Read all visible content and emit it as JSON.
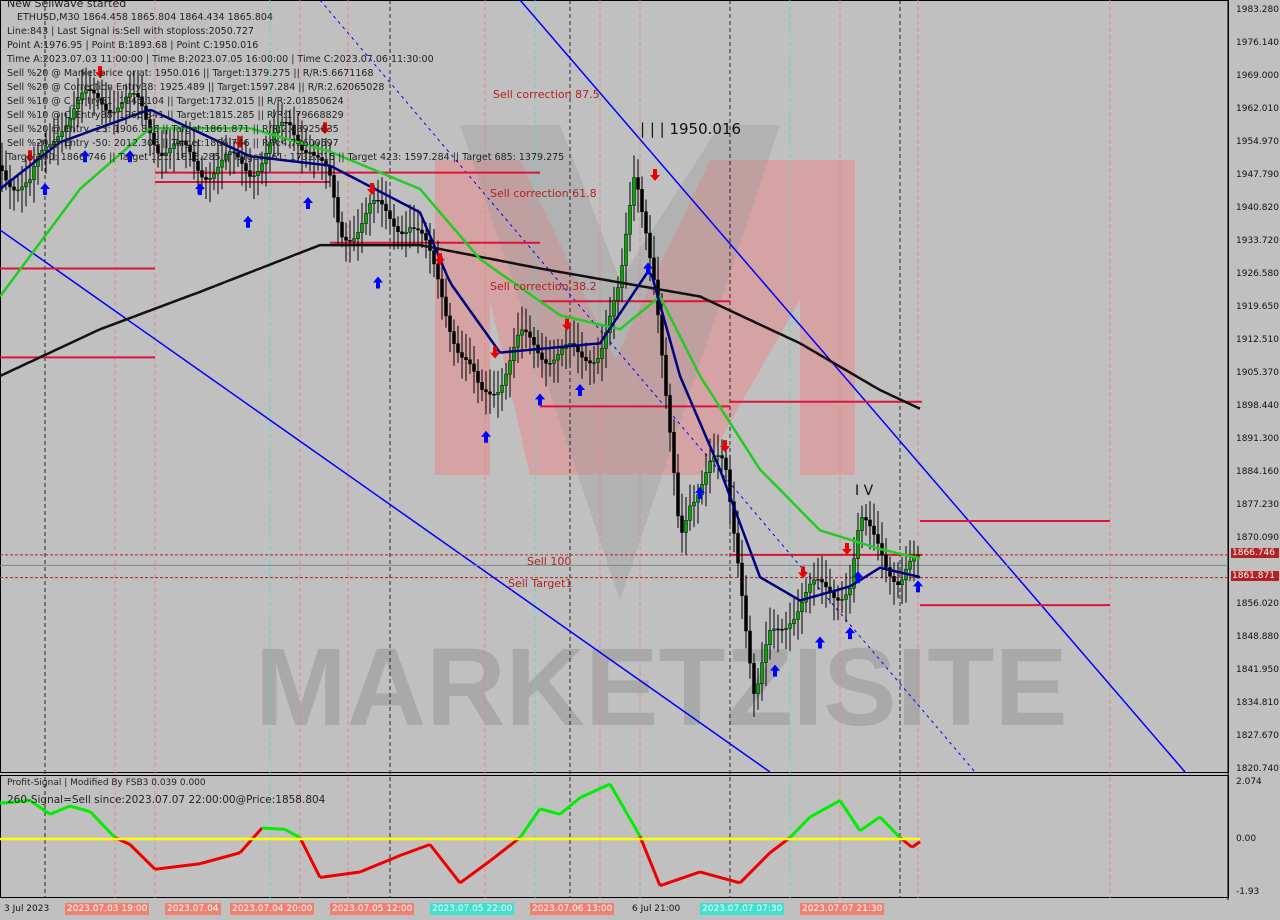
{
  "header": {
    "status": "New Sellwave started",
    "symbol_line": "ETHUSD,M30  1864.458 1865.804 1864.434 1865.804",
    "lines": [
      "Line:843 | Last Signal is:Sell with stoploss:2050.727",
      "Point A:1976.95 | Point B:1893.68 | Point C:1950.016",
      "Time A:2023.07.03 11:00:00 | Time B:2023.07.05 16:00:00 | Time C:2023.07.06 11:30:00",
      "Sell %20 @ Market price or at: 1950.016 || Target:1379.275 || R/R:5.6671168",
      "Sell %20 @ Correction Entry38: 1925.489 || Target:1597.284 || R/R:2.62065028",
      "Sell %10 @ C_Entry61: 1945.104 || Target:1732.015 || R/R:2.01850624",
      "Sell %10 @ C_Entry88: 1966.841 || Target:1815.285 || R/R:1.79668829",
      "Sell %20 @ Entry -23: 1906.836 || Target:1861.871 || R/R:2.48925635",
      "Sell %20 @ Entry -50: 2012.305 || Target:1866.746 || R/R:4.72600597",
      "Target100: 1866.746 || Target 161: 1815.285 || Target 261: 1732.015 || Target 423: 1597.284 || Target 685: 1379.275"
    ]
  },
  "labels": {
    "sell_correction_875": "Sell correction 87.5",
    "sell_correction_618": "Sell correction 61.8",
    "sell_correction_382": "Sell correction 38.2",
    "sell_100": "Sell 100",
    "sell_target1": "Sell Target1",
    "wave_c": "| | | 1950.016",
    "wave_iv": "I V",
    "watermark": "MARKETZISITE"
  },
  "price_axis": [
    "1983.280",
    "1976.140",
    "1969.000",
    "1962.010",
    "1954.970",
    "1947.790",
    "1940.820",
    "1933.720",
    "1926.580",
    "1919.650",
    "1912.510",
    "1905.370",
    "1898.440",
    "1891.300",
    "1884.160",
    "1877.230",
    "1870.090",
    "1856.020",
    "1848.880",
    "1841.950",
    "1834.810",
    "1827.670",
    "1820.740"
  ],
  "price_tags": {
    "target100": "1866.746",
    "target1": "1861.871"
  },
  "indicator": {
    "title": "Profit-Signal | Modified By FSB3 0.039 0.000",
    "signal": "260-Signal=Sell since:2023.07.07 22:00:00@Price:1858.804",
    "axis": [
      "2.074",
      "0.00",
      "-1.93"
    ]
  },
  "time_axis": [
    {
      "text": "3 Jul 2023",
      "kind": "p"
    },
    {
      "text": "2023.07.03 19:00",
      "kind": "s"
    },
    {
      "text": "2023.07.04",
      "kind": "s"
    },
    {
      "text": "2023.07.04 20:00",
      "kind": "s"
    },
    {
      "text": "2023.07.05 12:00",
      "kind": "s"
    },
    {
      "text": "2023.07.05 22:00",
      "kind": "c"
    },
    {
      "text": "2023.07.06 13:00",
      "kind": "s"
    },
    {
      "text": "6 Jul 21:00",
      "kind": "p"
    },
    {
      "text": "2023.07.07 07:30",
      "kind": "c"
    },
    {
      "text": "2023.07.07 21:30",
      "kind": "s"
    }
  ],
  "colors": {
    "bg": "#c0c0c0",
    "up": "#00aa00",
    "down": "#000000",
    "level": "#dc143c",
    "channel": "#0000ff",
    "ma_fast": "#000080",
    "ma_mid": "#22cc22",
    "ma_slow": "#111111"
  },
  "chart_data": {
    "type": "candlestick",
    "symbol": "ETHUSD",
    "timeframe": "M30",
    "ylim": [
      1820.74,
      1983.28
    ],
    "path": [
      [
        0,
        1950
      ],
      [
        30,
        1945
      ],
      [
        60,
        1960
      ],
      [
        100,
        1965
      ],
      [
        140,
        1962
      ],
      [
        160,
        1955
      ],
      [
        200,
        1950
      ],
      [
        250,
        1950
      ],
      [
        290,
        1958
      ],
      [
        310,
        1955
      ],
      [
        330,
        1945
      ],
      [
        340,
        1935
      ],
      [
        370,
        1940
      ],
      [
        410,
        1938
      ],
      [
        440,
        1925
      ],
      [
        460,
        1910
      ],
      [
        480,
        1900
      ],
      [
        500,
        1905
      ],
      [
        520,
        1912
      ],
      [
        560,
        1910
      ],
      [
        580,
        1908
      ],
      [
        600,
        1912
      ],
      [
        620,
        1922
      ],
      [
        635,
        1950
      ],
      [
        645,
        1940
      ],
      [
        655,
        1925
      ],
      [
        665,
        1900
      ],
      [
        680,
        1870
      ],
      [
        690,
        1880
      ],
      [
        710,
        1885
      ],
      [
        725,
        1885
      ],
      [
        740,
        1865
      ],
      [
        755,
        1835
      ],
      [
        770,
        1848
      ],
      [
        790,
        1855
      ],
      [
        810,
        1858
      ],
      [
        830,
        1860
      ],
      [
        850,
        1860
      ],
      [
        860,
        1872
      ],
      [
        880,
        1870
      ],
      [
        900,
        1860
      ],
      [
        920,
        1865
      ]
    ],
    "ma_fast": [
      [
        0,
        1945
      ],
      [
        60,
        1955
      ],
      [
        150,
        1962
      ],
      [
        250,
        1952
      ],
      [
        330,
        1950
      ],
      [
        420,
        1940
      ],
      [
        450,
        1925
      ],
      [
        500,
        1910
      ],
      [
        600,
        1912
      ],
      [
        650,
        1928
      ],
      [
        680,
        1905
      ],
      [
        720,
        1885
      ],
      [
        760,
        1862
      ],
      [
        800,
        1857
      ],
      [
        850,
        1860
      ],
      [
        880,
        1864
      ],
      [
        920,
        1862
      ]
    ],
    "ma_mid": [
      [
        0,
        1922
      ],
      [
        80,
        1945
      ],
      [
        150,
        1958
      ],
      [
        250,
        1958
      ],
      [
        330,
        1953
      ],
      [
        420,
        1945
      ],
      [
        480,
        1930
      ],
      [
        560,
        1918
      ],
      [
        620,
        1915
      ],
      [
        660,
        1922
      ],
      [
        700,
        1905
      ],
      [
        760,
        1885
      ],
      [
        820,
        1872
      ],
      [
        880,
        1868
      ],
      [
        920,
        1866
      ]
    ],
    "ma_slow": [
      [
        0,
        1905
      ],
      [
        100,
        1915
      ],
      [
        200,
        1923
      ],
      [
        320,
        1933
      ],
      [
        420,
        1933
      ],
      [
        540,
        1928
      ],
      [
        620,
        1925
      ],
      [
        700,
        1922
      ],
      [
        800,
        1912
      ],
      [
        880,
        1902
      ],
      [
        920,
        1898
      ]
    ],
    "levels": [
      {
        "price": 1948.5,
        "x": [
          155,
          540
        ]
      },
      {
        "price": 1946.5,
        "x": [
          155,
          330
        ]
      },
      {
        "price": 1933.5,
        "x": [
          330,
          540
        ]
      },
      {
        "price": 1921.0,
        "x": [
          540,
          730
        ]
      },
      {
        "price": 1898.5,
        "x": [
          540,
          730
        ]
      },
      {
        "price": 1899.5,
        "x": [
          730,
          922
        ]
      },
      {
        "price": 1928.0,
        "x": [
          0,
          155
        ]
      },
      {
        "price": 1909.0,
        "x": [
          0,
          155
        ]
      },
      {
        "price": 1874.0,
        "x": [
          920,
          1110
        ]
      },
      {
        "price": 1856.0,
        "x": [
          920,
          1110
        ]
      },
      {
        "price": 1866.746,
        "x": [
          730,
          922
        ]
      }
    ]
  }
}
